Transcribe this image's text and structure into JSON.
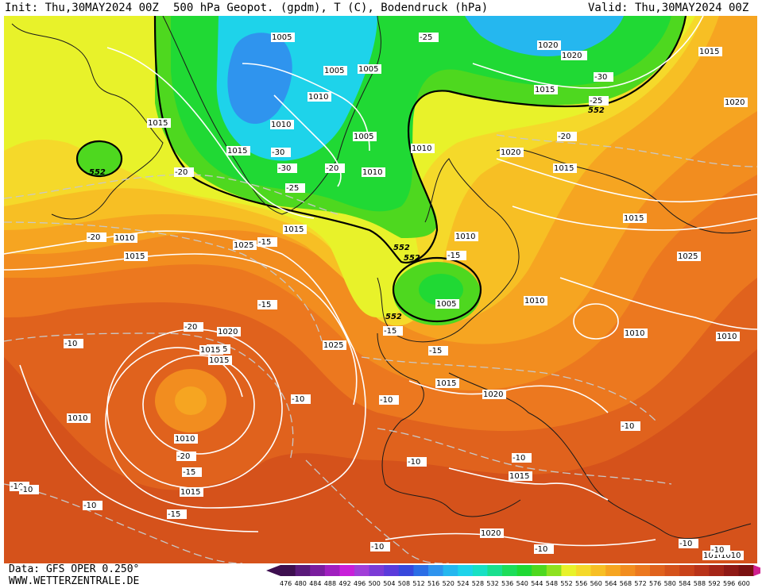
{
  "header": {
    "init": "Init: Thu,30MAY2024 00Z",
    "title": "500 hPa Geopot. (gpdm), T (C), Bodendruck (hPa)",
    "valid": "Valid: Thu,30MAY2024 00Z"
  },
  "footer": {
    "data_line": "Data: GFS OPER 0.250°",
    "site": "WWW.WETTERZENTRALE.DE"
  },
  "legend": {
    "values": [
      "476",
      "480",
      "484",
      "488",
      "492",
      "496",
      "500",
      "504",
      "508",
      "512",
      "516",
      "520",
      "524",
      "528",
      "532",
      "536",
      "540",
      "544",
      "548",
      "552",
      "556",
      "560",
      "564",
      "568",
      "572",
      "576",
      "580",
      "584",
      "588",
      "592",
      "596",
      "600"
    ],
    "colors": [
      "#3d0f4f",
      "#5a1a7a",
      "#7a1d9e",
      "#a01fbf",
      "#c81fd9",
      "#a13ed8",
      "#7b3bd6",
      "#5b3bdb",
      "#3848dc",
      "#2b6ee6",
      "#2f94ee",
      "#25b7ef",
      "#1ed3ea",
      "#18e0c4",
      "#1adf8e",
      "#1ddd5a",
      "#20d934",
      "#4ed81f",
      "#8ee11f",
      "#e8f22a",
      "#f5d92a",
      "#f7bf24",
      "#f6a521",
      "#f28d1f",
      "#ec781f",
      "#e0621d",
      "#d5521b",
      "#c9421a",
      "#b93319",
      "#a52517",
      "#8f1915",
      "#7a1110"
    ]
  },
  "map": {
    "height_label": "552",
    "pressure_labels": [
      "1005",
      "1005",
      "1005",
      "1010",
      "1010",
      "1005",
      "1010",
      "1010",
      "1015",
      "1015",
      "1020",
      "1025",
      "1015",
      "1020",
      "1020",
      "1015",
      "1015",
      "1010",
      "1005",
      "1010",
      "1010",
      "1015",
      "1020",
      "1025",
      "1015",
      "1020",
      "1025",
      "1015",
      "1010",
      "1015",
      "1010",
      "1025",
      "1015",
      "1020",
      "1010",
      "1015",
      "1020",
      "1010",
      "1015",
      "1010",
      "1010",
      "1015",
      "1015"
    ],
    "temp_labels": [
      "-25",
      "-30",
      "-25",
      "-20",
      "-30",
      "-25",
      "-20",
      "-30",
      "-20",
      "-15",
      "-20",
      "-15",
      "-15",
      "-20",
      "-15",
      "-15",
      "-10",
      "-10",
      "-10",
      "-20",
      "-15",
      "-10",
      "-10",
      "-10",
      "-10",
      "-10",
      "-10",
      "-10",
      "-15",
      "-10",
      "-10",
      "-10"
    ]
  }
}
